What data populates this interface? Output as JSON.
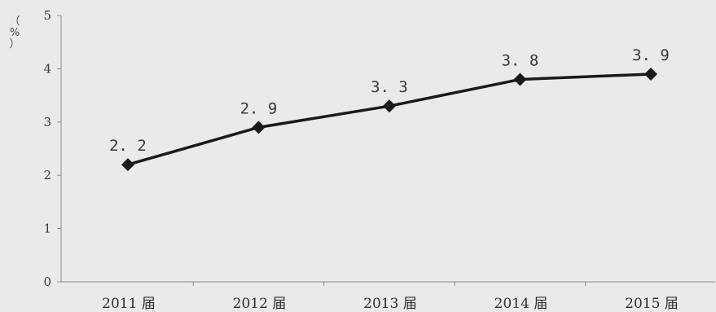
{
  "chart_data": {
    "type": "line",
    "categories": [
      "2011 届",
      "2012 届",
      "2013 届",
      "2014 届",
      "2015 届"
    ],
    "series": [
      {
        "values": [
          2.2,
          2.9,
          3.3,
          3.8,
          3.9
        ]
      }
    ],
    "data_labels": [
      "2. 2",
      "2. 9",
      "3. 3",
      "3. 8",
      "3. 9"
    ],
    "ylabel": "（%）",
    "ylabel_chars": [
      "（",
      "%",
      "）"
    ],
    "ylim": [
      0,
      5
    ],
    "yticks": [
      0,
      1,
      2,
      3,
      4,
      5
    ],
    "grid": false,
    "marker": "diamond",
    "colors": {
      "line": "#1a1a1a",
      "axis": "#8a8a8a",
      "background": "#eceae9"
    }
  }
}
